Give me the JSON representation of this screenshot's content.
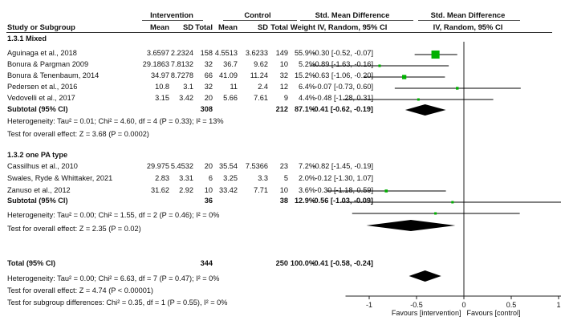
{
  "header": {
    "study": "Study or Subgroup",
    "intervention": "Intervention",
    "control": "Control",
    "mean": "Mean",
    "sd": "SD",
    "total": "Total",
    "weight": "Weight",
    "smd_title": "Std. Mean Difference",
    "smd_sub": "IV, Random, 95% CI",
    "plot_title": "Std. Mean Difference",
    "plot_sub": "IV, Random, 95% CI"
  },
  "rows": [
    {
      "kind": "group",
      "label": "1.3.1 Mixed"
    },
    {
      "kind": "study",
      "label": "Aguinaga et al., 2018",
      "i_mean": "3.6597",
      "i_sd": "2.2324",
      "i_total": "158",
      "c_mean": "4.5513",
      "c_sd": "3.6233",
      "c_total": "149",
      "weight": "55.9%",
      "ci": "-0.30 [-0.52, -0.07]"
    },
    {
      "kind": "study",
      "label": "Bonura & Pargman 2009",
      "i_mean": "29.1863",
      "i_sd": "7.8132",
      "i_total": "32",
      "c_mean": "36.7",
      "c_sd": "9.62",
      "c_total": "10",
      "weight": "5.2%",
      "ci": "-0.89 [-1.63, -0.16]"
    },
    {
      "kind": "study",
      "label": "Bonura & Tenenbaum, 2014",
      "i_mean": "34.97",
      "i_sd": "8.7278",
      "i_total": "66",
      "c_mean": "41.09",
      "c_sd": "11.24",
      "c_total": "32",
      "weight": "15.2%",
      "ci": "-0.63 [-1.06, -0.20]"
    },
    {
      "kind": "study",
      "label": "Pedersen et al., 2016",
      "i_mean": "10.8",
      "i_sd": "3.1",
      "i_total": "32",
      "c_mean": "11",
      "c_sd": "2.4",
      "c_total": "12",
      "weight": "6.4%",
      "ci": "-0.07 [-0.73, 0.60]"
    },
    {
      "kind": "study",
      "label": "Vedovelli et al., 2017",
      "i_mean": "3.15",
      "i_sd": "3.42",
      "i_total": "20",
      "c_mean": "5.66",
      "c_sd": "7.61",
      "c_total": "9",
      "weight": "4.4%",
      "ci": "-0.48 [-1.28, 0.31]"
    },
    {
      "kind": "subtotal",
      "label": "Subtotal (95% CI)",
      "i_total": "308",
      "c_total": "212",
      "weight": "87.1%",
      "ci": "-0.41 [-0.62, -0.19]"
    },
    {
      "kind": "note",
      "label": "Heterogeneity: Tau² = 0.01; Chi² = 4.60, df = 4 (P = 0.33); I² = 13%"
    },
    {
      "kind": "note",
      "label": "Test for overall effect: Z = 3.68 (P = 0.0002)"
    },
    {
      "kind": "blank"
    },
    {
      "kind": "group",
      "label": "1.3.2 one PA type"
    },
    {
      "kind": "study",
      "label": "Cassilhus et al., 2010",
      "i_mean": "29.975",
      "i_sd": "5.4532",
      "i_total": "20",
      "c_mean": "35.54",
      "c_sd": "7.5366",
      "c_total": "23",
      "weight": "7.2%",
      "ci": "-0.82 [-1.45, -0.19]"
    },
    {
      "kind": "study",
      "label": "Swales, Ryde & Whittaker, 2021",
      "i_mean": "2.83",
      "i_sd": "3.31",
      "i_total": "6",
      "c_mean": "3.25",
      "c_sd": "3.3",
      "c_total": "5",
      "weight": "2.0%",
      "ci": "-0.12 [-1.30, 1.07]"
    },
    {
      "kind": "study",
      "label": "Zanuso et al., 2012",
      "i_mean": "31.62",
      "i_sd": "2.92",
      "i_total": "10",
      "c_mean": "33.42",
      "c_sd": "7.71",
      "c_total": "10",
      "weight": "3.6%",
      "ci": "-0.30 [-1.18, 0.59]"
    },
    {
      "kind": "subtotal",
      "label": "Subtotal (95% CI)",
      "i_total": "36",
      "c_total": "38",
      "weight": "12.9%",
      "ci": "-0.56 [-1.03, -0.09]"
    },
    {
      "kind": "note",
      "label": "Heterogeneity: Tau² = 0.00; Chi² = 1.55, df = 2 (P = 0.46); I² = 0%"
    },
    {
      "kind": "note",
      "label": "Test for overall effect: Z = 2.35 (P = 0.02)"
    },
    {
      "kind": "blank"
    },
    {
      "kind": "subtotal",
      "label": "Total (95% CI)",
      "i_total": "344",
      "c_total": "250",
      "weight": "100.0%",
      "ci": "-0.41 [-0.58, -0.24]"
    },
    {
      "kind": "note",
      "label": "Heterogeneity: Tau² = 0.00; Chi² = 6.63, df = 7 (P = 0.47); I² = 0%"
    },
    {
      "kind": "note",
      "label": "Test for overall effect: Z = 4.74 (P < 0.00001)"
    },
    {
      "kind": "note",
      "label": "Test for subgroup differences: Chi² = 0.35, df = 1 (P = 0.55), I² = 0%"
    }
  ],
  "chart_data": {
    "type": "forest",
    "xlim": [
      -1.25,
      1.25
    ],
    "ticks": [
      -1,
      -0.5,
      0,
      0.5,
      1
    ],
    "tick_labels": [
      "-1",
      "-0.5",
      "0",
      "0.5",
      "1"
    ],
    "xlabel_left": "Favours [intervention]",
    "xlabel_right": "Favours [control]",
    "studies": [
      {
        "name": "Aguinaga et al., 2018",
        "est": -0.3,
        "lo": -0.52,
        "hi": -0.07,
        "weight": 55.9
      },
      {
        "name": "Bonura & Pargman 2009",
        "est": -0.89,
        "lo": -1.63,
        "hi": -0.16,
        "weight": 5.2
      },
      {
        "name": "Bonura & Tenenbaum, 2014",
        "est": -0.63,
        "lo": -1.06,
        "hi": -0.2,
        "weight": 15.2
      },
      {
        "name": "Pedersen et al., 2016",
        "est": -0.07,
        "lo": -0.73,
        "hi": 0.6,
        "weight": 6.4
      },
      {
        "name": "Vedovelli et al., 2017",
        "est": -0.48,
        "lo": -1.28,
        "hi": 0.31,
        "weight": 4.4
      },
      {
        "name": "Cassilhus et al., 2010",
        "est": -0.82,
        "lo": -1.45,
        "hi": -0.19,
        "weight": 7.2
      },
      {
        "name": "Swales, Ryde & Whittaker, 2021",
        "est": -0.12,
        "lo": -1.3,
        "hi": 1.07,
        "weight": 2.0
      },
      {
        "name": "Zanuso et al., 2012",
        "est": -0.3,
        "lo": -1.18,
        "hi": 0.59,
        "weight": 3.6
      }
    ],
    "summaries": [
      {
        "name": "Subtotal 1.3.1 Mixed",
        "est": -0.41,
        "lo": -0.62,
        "hi": -0.19
      },
      {
        "name": "Subtotal 1.3.2 one PA type",
        "est": -0.56,
        "lo": -1.03,
        "hi": -0.09
      },
      {
        "name": "Total",
        "est": -0.41,
        "lo": -0.58,
        "hi": -0.24
      }
    ],
    "marker_color": "#00b000",
    "diamond_color": "#000000"
  }
}
